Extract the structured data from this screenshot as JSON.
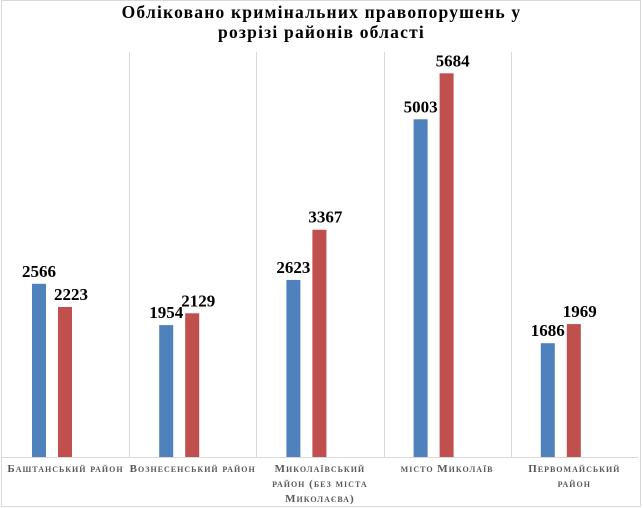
{
  "chart_data": {
    "type": "bar",
    "title": "Обліковано кримінальних правопорушень у розрізі районів області",
    "title_lines": [
      "Обліковано кримінальних правопорушень у",
      "розрізі районів області"
    ],
    "categories": [
      "Баштанський район",
      "Вознесенський район",
      "Миколаївський район (без міста Миколаєва)",
      "місто Миколаїв",
      "Первомайський район"
    ],
    "series": [
      {
        "values": [
          2566,
          1954,
          2623,
          5003,
          1686
        ],
        "color": "#4f81bd"
      },
      {
        "values": [
          2223,
          2129,
          3367,
          5684,
          1969
        ],
        "color": "#c0504d"
      }
    ],
    "ylim": [
      0,
      6000
    ],
    "grid": "vertical category separators",
    "legend": "none",
    "data_labels": true
  }
}
